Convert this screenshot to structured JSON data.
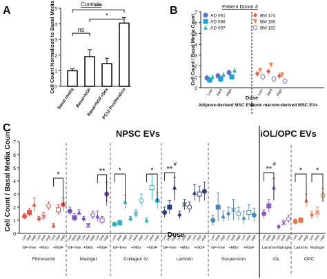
{
  "panels": {
    "a": "A",
    "b": "B",
    "c": "C"
  },
  "chart_data": [
    {
      "type": "bar",
      "panel": "A",
      "title": "Controls",
      "ylabel": "Cell Count Normalized to Basal Media",
      "ylim": [
        0,
        5
      ],
      "yticks": [
        0,
        1,
        2,
        3,
        4,
        5
      ],
      "categories": [
        "Basal media",
        "Basal+NGF",
        "Basal+NGF+Dex",
        "PC12 Proliferation"
      ],
      "values": [
        1.0,
        1.9,
        1.45,
        4.05
      ],
      "errors": [
        0.12,
        0.45,
        0.35,
        0.35
      ],
      "significance": [
        {
          "from": 0,
          "to": 1,
          "label": "ns"
        },
        {
          "from": 0,
          "to": 3,
          "label": "***"
        },
        {
          "from": 1,
          "to": 3,
          "label": "*"
        }
      ]
    },
    {
      "type": "scatter",
      "panel": "B",
      "title": "Patient Donor #",
      "ylabel": "Cell Count / Basal Media Count",
      "xlabel": "Dose",
      "ylim": [
        0,
        7
      ],
      "yticks": [
        0,
        1,
        2,
        3,
        4,
        5,
        6,
        7
      ],
      "dose_labels": [
        "Low",
        "Med",
        "High"
      ],
      "group_labels": [
        "Adipose-derived MSC EVs",
        "Bone marrow-derived MSC EVs"
      ],
      "series": [
        {
          "name": "AD 061",
          "color": "#5a6fc7",
          "marker": "circle",
          "values": [
            0.9,
            1.1,
            1.4
          ]
        },
        {
          "name": "AD 088",
          "color": "#1aa2d6",
          "marker": "square",
          "values": [
            0.7,
            0.8,
            1.0
          ]
        },
        {
          "name": "AD 097",
          "color": "#3cb6b0",
          "marker": "triangle",
          "values": [
            1.0,
            1.2,
            1.6
          ]
        },
        {
          "name": "BM 174",
          "color": "#e05a4f",
          "marker": "diamond",
          "values": [
            1.3,
            1.5,
            1.1
          ]
        },
        {
          "name": "BM 180",
          "color": "#f08a4b",
          "marker": "triangle-down",
          "values": [
            1.6,
            2.1,
            1.2
          ]
        },
        {
          "name": "BM 182",
          "color": "#7b74c9",
          "marker": "circle-open",
          "values": [
            1.0,
            0.8,
            0.6
          ]
        }
      ]
    },
    {
      "type": "scatter",
      "panel": "C",
      "ylabel": "Cell Count / Basal Media Count",
      "xlabel": "Dose",
      "ylim": [
        0,
        7
      ],
      "yticks": [
        0,
        1,
        2,
        3,
        4,
        5,
        6,
        7
      ],
      "section_titles": [
        "NPSC EVs",
        "iOL/OPC EVs"
      ],
      "dose_labels": [
        "Low",
        "Med",
        "High"
      ],
      "groups": [
        {
          "name": "Fibronectin",
          "color": "#e8524a",
          "sublabels": [
            "GF-free",
            "+Mito",
            "+NGF"
          ],
          "values": [
            1.3,
            1.6,
            2.2,
            1.1,
            1.3,
            2.1,
            0.6,
            1.8,
            2.2
          ],
          "errors": [
            0.2,
            0.3,
            0.5,
            0.2,
            0.3,
            0.3,
            0.15,
            0.4,
            0.5
          ]
        },
        {
          "name": "Matrigel",
          "color": "#7a4fc2",
          "sublabels": [
            "GF-free",
            "+Mito",
            "+NGF"
          ],
          "values": [
            1.7,
            1.2,
            1.6,
            1.1,
            0.6,
            1.4,
            1.3,
            1.0,
            3.0
          ],
          "errors": [
            0.3,
            0.3,
            0.2,
            0.2,
            0.15,
            0.3,
            0.4,
            0.3,
            0.9
          ]
        },
        {
          "name": "Collagen IV",
          "color": "#2fb0c8",
          "sublabels": [
            "GF-free",
            "+Mito",
            "+NGF"
          ],
          "values": [
            0.7,
            0.8,
            2.4,
            1.1,
            1.5,
            2.5,
            1.0,
            3.5,
            2.5
          ],
          "errors": [
            0.15,
            0.2,
            0.5,
            0.2,
            0.3,
            0.5,
            0.2,
            1.0,
            0.6
          ]
        },
        {
          "name": "Laminin",
          "color": "#2a3f7a",
          "sublabels": [
            "GF-free",
            "+Mito",
            "+NGF"
          ],
          "values": [
            1.6,
            2.0,
            3.5,
            1.4,
            2.2,
            2.0,
            3.1,
            3.0,
            3.2
          ],
          "errors": [
            0.4,
            0.5,
            0.8,
            0.3,
            0.4,
            0.4,
            0.6,
            0.6,
            0.7
          ]
        },
        {
          "name": "Suspension",
          "color": "#4a86b8",
          "sublabels": [
            "GF-free",
            "+Mito",
            "+NGF"
          ],
          "values": [
            1.0,
            2.0,
            1.3,
            1.5,
            1.8,
            1.5,
            1.2,
            1.6,
            1.4
          ],
          "errors": [
            0.4,
            1.1,
            0.4,
            0.5,
            0.8,
            0.5,
            0.5,
            0.6,
            0.5
          ]
        },
        {
          "name": "iOL",
          "color": "#8a5ac8",
          "sublabels": [
            "Laminin",
            "Matrigel"
          ],
          "values": [
            1.5,
            2.1,
            3.5,
            0.5,
            0.8,
            1.1
          ],
          "errors": [
            0.3,
            0.5,
            0.7,
            0.1,
            0.2,
            0.3
          ]
        },
        {
          "name": "OPC",
          "color": "#e8784a",
          "sublabels": [
            "Laminin",
            "Matrigel"
          ],
          "values": [
            0.9,
            1.0,
            2.5,
            1.4,
            1.6,
            2.9
          ],
          "errors": [
            0.2,
            0.2,
            0.5,
            0.3,
            0.4,
            0.5
          ]
        }
      ],
      "significance": [
        {
          "label": "*",
          "group": "Fibronectin"
        },
        {
          "label": "**",
          "group": "Matrigel"
        },
        {
          "label": "*",
          "group": "Collagen IV",
          "part": "left"
        },
        {
          "label": "*",
          "group": "Collagen IV",
          "part": "right"
        },
        {
          "label": "**",
          "group": "Laminin",
          "extra": "#"
        },
        {
          "label": "**",
          "group": "iOL",
          "extra": "#"
        },
        {
          "label": "*",
          "group": "OPC",
          "part": "left"
        },
        {
          "label": "*",
          "group": "OPC",
          "part": "right"
        }
      ]
    }
  ]
}
